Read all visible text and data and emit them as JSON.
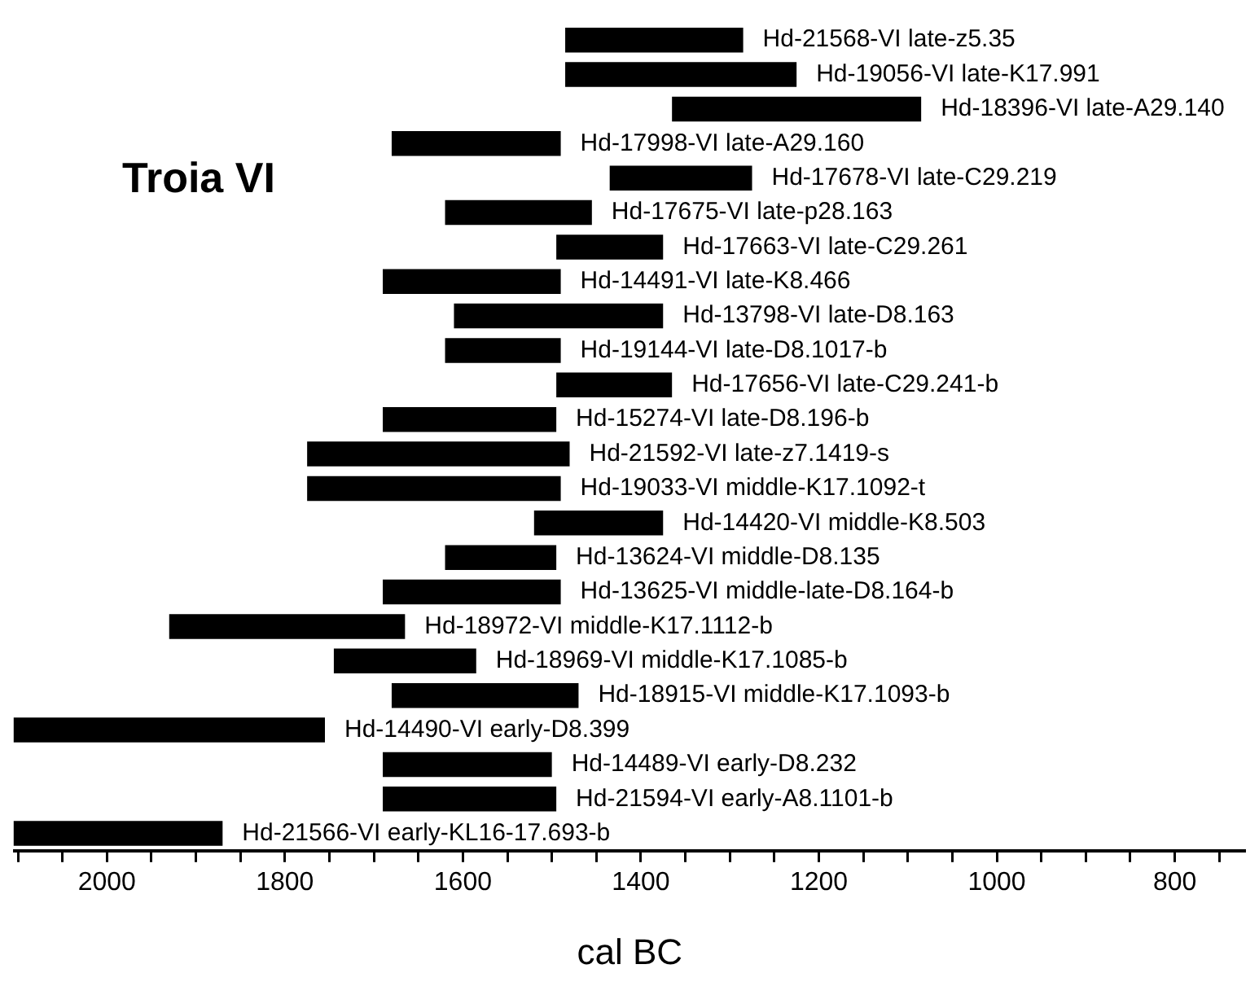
{
  "chart_data": {
    "type": "bar",
    "orientation": "horizontal",
    "xlabel": "cal BC",
    "annotations": [
      "Troia VI"
    ],
    "categories": [
      "Hd-21568-VI late-z5.35",
      "Hd-19056-VI late-K17.991",
      "Hd-18396-VI late-A29.140",
      "Hd-17998-VI late-A29.160",
      "Hd-17678-VI late-C29.219",
      "Hd-17675-VI late-p28.163",
      "Hd-17663-VI late-C29.261",
      "Hd-14491-VI late-K8.466",
      "Hd-13798-VI late-D8.163",
      "Hd-19144-VI late-D8.1017-b",
      "Hd-17656-VI late-C29.241-b",
      "Hd-15274-VI late-D8.196-b",
      "Hd-21592-VI late-z7.1419-s",
      "Hd-19033-VI middle-K17.1092-t",
      "Hd-14420-VI middle-K8.503",
      "Hd-13624-VI middle-D8.135",
      "Hd-13625-VI middle-late-D8.164-b",
      "Hd-18972-VI middle-K17.1112-b",
      "Hd-18969-VI middle-K17.1085-b",
      "Hd-18915-VI middle-K17.1093-b",
      "Hd-14490-VI early-D8.399",
      "Hd-14489-VI early-D8.232",
      "Hd-21594-VI early-A8.1101-b",
      "Hd-21566-VI early-KL16-17.693-b"
    ],
    "base": [
      1285,
      1225,
      1085,
      1490,
      1275,
      1455,
      1375,
      1490,
      1375,
      1490,
      1365,
      1495,
      1480,
      1490,
      1375,
      1495,
      1490,
      1665,
      1585,
      1470,
      1755,
      1500,
      1495,
      1870
    ],
    "values": [
      200,
      260,
      280,
      190,
      160,
      165,
      120,
      200,
      235,
      130,
      130,
      195,
      295,
      285,
      145,
      125,
      200,
      265,
      160,
      210,
      350,
      190,
      195,
      235
    ],
    "color": "#000000",
    "xlim": [
      2105,
      720
    ],
    "xticks": [
      {
        "value": 2100,
        "label": null
      },
      {
        "value": 2050,
        "label": null
      },
      2000,
      {
        "value": 1950,
        "label": null
      },
      {
        "value": 1900,
        "label": null
      },
      {
        "value": 1850,
        "label": null
      },
      1800,
      {
        "value": 1750,
        "label": null
      },
      {
        "value": 1700,
        "label": null
      },
      {
        "value": 1650,
        "label": null
      },
      1600,
      {
        "value": 1550,
        "label": null
      },
      {
        "value": 1500,
        "label": null
      },
      {
        "value": 1450,
        "label": null
      },
      1400,
      {
        "value": 1350,
        "label": null
      },
      {
        "value": 1300,
        "label": null
      },
      {
        "value": 1250,
        "label": null
      },
      1200,
      {
        "value": 1150,
        "label": null
      },
      {
        "value": 1100,
        "label": null
      },
      {
        "value": 1050,
        "label": null
      },
      1000,
      {
        "value": 950,
        "label": null
      },
      {
        "value": 900,
        "label": null
      },
      {
        "value": 850,
        "label": null
      },
      800,
      {
        "value": 750,
        "label": null
      }
    ],
    "grid": false,
    "legend": false
  }
}
